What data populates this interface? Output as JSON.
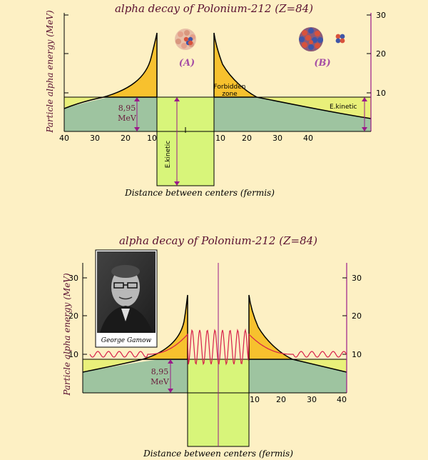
{
  "top": {
    "title": "alpha decay of  Polonium-212 (Z=84)",
    "ylabel": "Particle alpha energy (MeV)",
    "xlabel": "Distance between centers (fermis)",
    "x_ticks_left": [
      "40",
      "30",
      "20",
      "10"
    ],
    "x_ticks_right": [
      "10",
      "20",
      "30",
      "40"
    ],
    "y_ticks": [
      "10",
      "20",
      "30"
    ],
    "label_A": "(A)",
    "label_B": "(B)",
    "forbidden_1": "Forbidden",
    "forbidden_2": "zone",
    "ekin_right": "E.kinetic",
    "ekin_well": "E.kinetic",
    "energy_1": "8,95",
    "energy_2": "MeV"
  },
  "bottom": {
    "title": "alpha decay of  Polonium-212 (Z=84)",
    "ylabel": "Particle alpha energy (MeV)",
    "xlabel": "Distance between centers (fermis)",
    "x_ticks_right": [
      "10",
      "20",
      "30",
      "40"
    ],
    "y_ticks_left": [
      "10",
      "20",
      "30"
    ],
    "y_ticks_right": [
      "10",
      "20",
      "30"
    ],
    "energy_1": "8,95",
    "energy_2": "MeV",
    "photo_caption": "George Gamow"
  },
  "colors": {
    "background": "#fdf0c4",
    "barrier": "#f7c12e",
    "kinetic_band": "#e9f07a",
    "below_curve": "#9ec4a0",
    "well": "#d8f57a",
    "axis_purple": "#9a1a8a",
    "wave": "#d6204a",
    "proton": "#d8523c",
    "neutron": "#3f56a8"
  }
}
